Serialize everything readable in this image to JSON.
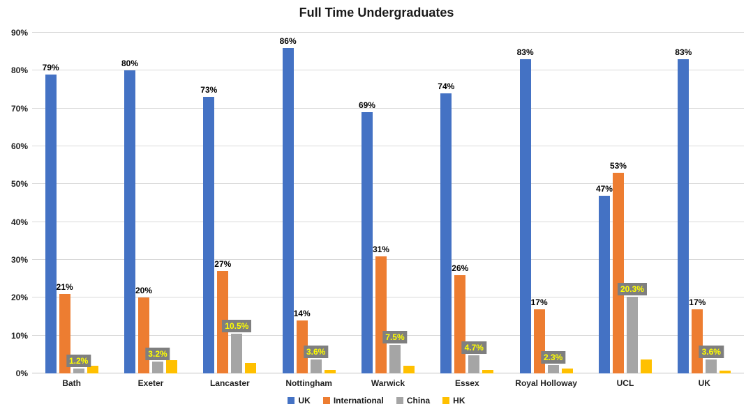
{
  "chart_data": {
    "type": "bar",
    "title": "Full Time Undergraduates",
    "categories": [
      "Bath",
      "Exeter",
      "Lancaster",
      "Nottingham",
      "Warwick",
      "Essex",
      "Royal Holloway",
      "UCL",
      "UK"
    ],
    "series": [
      {
        "name": "UK",
        "color": "#4472C4",
        "values": [
          79,
          80,
          73,
          86,
          69,
          74,
          83,
          47,
          83
        ],
        "labels": [
          "79%",
          "80%",
          "73%",
          "86%",
          "69%",
          "74%",
          "83%",
          "47%",
          "83%"
        ],
        "label_style": "plain"
      },
      {
        "name": "International",
        "color": "#ED7D31",
        "values": [
          21,
          20,
          27,
          14,
          31,
          26,
          17,
          53,
          17
        ],
        "labels": [
          "21%",
          "20%",
          "27%",
          "14%",
          "31%",
          "26%",
          "17%",
          "53%",
          "17%"
        ],
        "label_style": "plain"
      },
      {
        "name": "China",
        "color": "#A5A5A5",
        "values": [
          1.2,
          3.2,
          10.5,
          3.6,
          7.5,
          4.7,
          2.3,
          20.3,
          3.6
        ],
        "labels": [
          "1.2%",
          "3.2%",
          "10.5%",
          "3.6%",
          "7.5%",
          "4.7%",
          "2.3%",
          "20.3%",
          "3.6%"
        ],
        "label_style": "boxed"
      },
      {
        "name": "HK",
        "color": "#FFC000",
        "values": [
          2,
          3.5,
          2.7,
          1,
          2,
          1,
          1.3,
          3.7,
          0.8
        ],
        "labels": null,
        "label_style": "none"
      }
    ],
    "ylim": [
      0,
      90
    ],
    "ytick_step": 10,
    "ytick_labels": [
      "0%",
      "10%",
      "20%",
      "30%",
      "40%",
      "50%",
      "60%",
      "70%",
      "80%",
      "90%"
    ],
    "xlabel": "",
    "ylabel": "",
    "grid": true,
    "legend_position": "bottom",
    "label_colors": {
      "plain_text": "#000000",
      "boxed_bg": "#7F7F7F",
      "boxed_text": "#FFFF00"
    }
  }
}
